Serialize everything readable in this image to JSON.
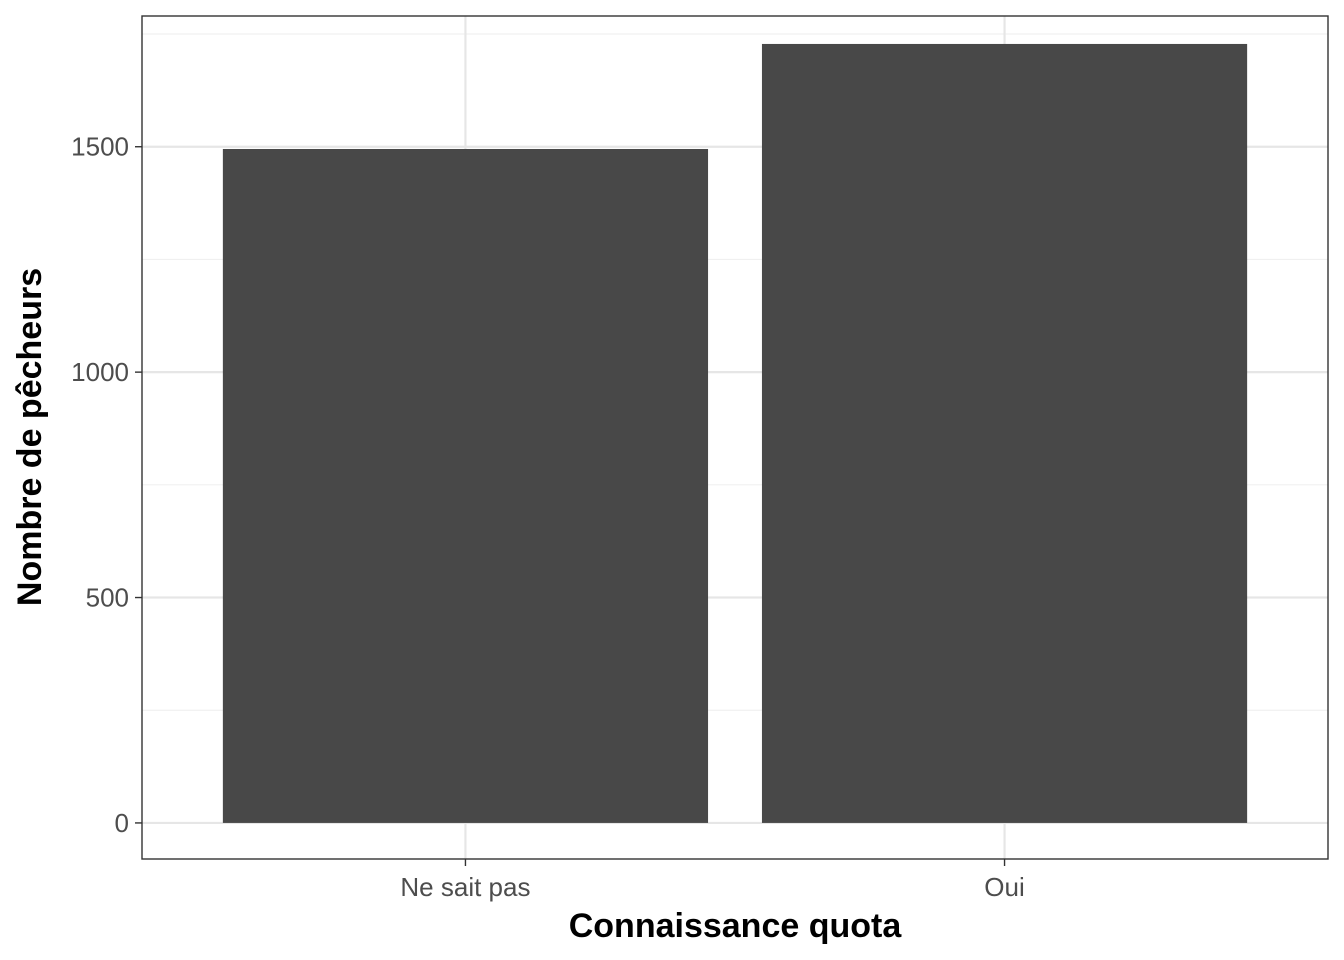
{
  "chart_data": {
    "type": "bar",
    "categories": [
      "Ne sait pas",
      "Oui"
    ],
    "values": [
      1495,
      1728
    ],
    "xlabel": "Connaissance quota",
    "ylabel": "Nombre de pêcheurs",
    "ylim": [
      -80,
      1790
    ],
    "yticks": [
      0,
      500,
      1000,
      1500
    ],
    "grid": true,
    "colors": {
      "bar": "#484848",
      "grid_major": "#e6e6e6",
      "grid_minor": "#f0f0f0",
      "frame": "#333333"
    }
  }
}
